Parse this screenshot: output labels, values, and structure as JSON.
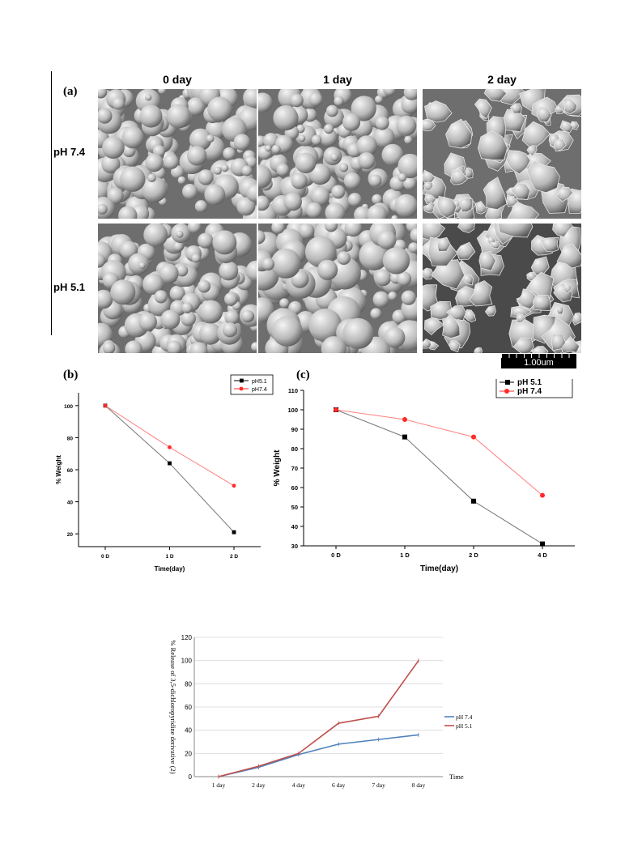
{
  "figure_a": {
    "panel_label": "(a)",
    "columns": [
      "0 day",
      "1 day",
      "2 day"
    ],
    "rows": [
      "pH 7.4",
      "pH 5.1"
    ],
    "scale_bar": "1.00um"
  },
  "chart_data": [
    {
      "panel_label": "(b)",
      "type": "line",
      "categories": [
        "0 D",
        "1 D",
        "2 D"
      ],
      "xlabel": "Time(day)",
      "ylabel": "% Weight",
      "yticks": [
        20,
        40,
        60,
        80,
        100
      ],
      "ylim": [
        12,
        108
      ],
      "legend_position": "top-right",
      "series": [
        {
          "name": "pH5.1",
          "values": [
            100,
            64,
            21
          ],
          "color": "#000000",
          "marker": "square"
        },
        {
          "name": "pH7.4",
          "values": [
            100,
            74,
            50
          ],
          "color": "#ff2a2a",
          "marker": "circle"
        }
      ]
    },
    {
      "panel_label": "(c)",
      "type": "line",
      "categories": [
        "0 D",
        "1 D",
        "2 D",
        "4 D"
      ],
      "xlabel": "Time(day)",
      "ylabel": "% Weight",
      "yticks": [
        30,
        40,
        50,
        60,
        70,
        80,
        90,
        100,
        110
      ],
      "ylim": [
        30,
        110
      ],
      "legend_position": "top-right",
      "series": [
        {
          "name": "pH 5.1",
          "values": [
            100,
            86,
            53,
            31
          ],
          "color": "#000000",
          "marker": "square"
        },
        {
          "name": "pH 7.4",
          "values": [
            100,
            95,
            86,
            56
          ],
          "color": "#ff2a2a",
          "marker": "circle"
        }
      ]
    },
    {
      "type": "line",
      "categories": [
        "1 day",
        "2 day",
        "4 day",
        "6 day",
        "7 day",
        "8 day"
      ],
      "xlabel": "Time",
      "ylabel": "% Release  of 3,5-dichloropyridine derivative (2)",
      "yticks": [
        0,
        20,
        40,
        60,
        80,
        100,
        120
      ],
      "ylim": [
        0,
        120
      ],
      "grid": true,
      "legend_position": "right",
      "series": [
        {
          "name": "pH 7.4",
          "values": [
            0,
            8,
            19,
            28,
            32,
            36
          ],
          "color": "#4f81bd"
        },
        {
          "name": "pH 5.1",
          "values": [
            0,
            9,
            20,
            46,
            52,
            100
          ],
          "color": "#c0504d"
        }
      ]
    }
  ]
}
